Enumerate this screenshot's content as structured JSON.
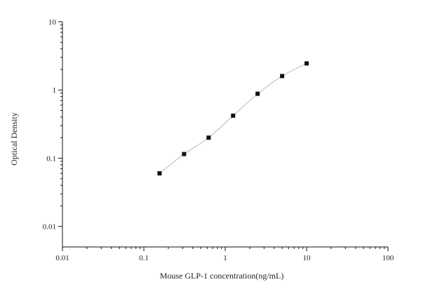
{
  "chart_data": {
    "type": "scatter",
    "title": "",
    "xlabel": "Mouse GLP-1 concentration(ng/mL)",
    "ylabel": "Optical Density",
    "x_scale": "log",
    "y_scale": "log",
    "xlim": [
      0.01,
      100
    ],
    "ylim": [
      0.005,
      10
    ],
    "x_ticks": [
      0.01,
      0.1,
      1,
      10,
      100
    ],
    "x_tick_labels": [
      "0.01",
      "0.1",
      "1",
      "10",
      "100"
    ],
    "y_ticks": [
      0.01,
      0.1,
      1,
      10
    ],
    "y_tick_labels": [
      "0.01",
      "0.1",
      "1",
      "10"
    ],
    "grid": false,
    "fit_curve": true,
    "series": [
      {
        "x": [
          0.156,
          0.312,
          0.625,
          1.25,
          2.5,
          5,
          10
        ],
        "y": [
          0.06,
          0.115,
          0.2,
          0.42,
          0.88,
          1.6,
          2.45
        ]
      }
    ]
  }
}
